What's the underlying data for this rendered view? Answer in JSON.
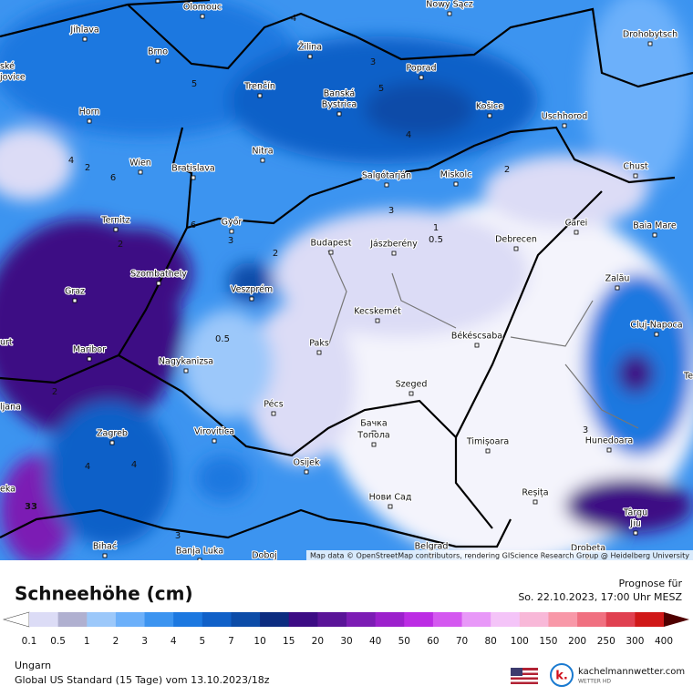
{
  "map": {
    "cities": [
      "Olomouc",
      "Nowy Sącz",
      "Jihlava",
      "Brno",
      "Žilina",
      "Poprad",
      "Drohobytsch",
      "ské",
      "jovice",
      "Trenčín",
      "Banská",
      "Bystrica",
      "Košice",
      "Uschhorod",
      "Horn",
      "Nitra",
      "Wien",
      "Bratislava",
      "Salgótarján",
      "Miskolc",
      "Chust",
      "Ternitz",
      "Győr",
      "Carei",
      "Baia Mare",
      "Budapest",
      "Jászberény",
      "Debrecen",
      "Szombathely",
      "Graz",
      "Veszprém",
      "Zalău",
      "Kecskemét",
      "Cluj-Napoca",
      "urt",
      "Paks",
      "Békéscsaba",
      "Maribor",
      "Nagykanizsa",
      "Szeged",
      "Te",
      "ljana",
      "Pécs",
      "Zagreb",
      "Virovitica",
      "Бачка",
      "Топола",
      "Timișoara",
      "Hunedoara",
      "Osijek",
      "eka",
      "Нови Сад",
      "Reșița",
      "Târgu",
      "Jiu",
      "Bihać",
      "Banja Luka",
      "Doboj",
      "Belgrad",
      "Drobeta"
    ],
    "contour_labels": [
      "2",
      "4",
      "3",
      "5",
      "5",
      "4",
      "4",
      "3",
      "2",
      "4",
      "2",
      "6",
      "3",
      "1",
      "0.5",
      "3",
      "2",
      "0.5",
      "6",
      "4",
      "2",
      "33",
      "3"
    ],
    "attribution": "Map data © OpenStreetMap contributors, rendering GIScience Research Group @ Heidelberg University"
  },
  "legend": {
    "title": "Schneehöhe (cm)",
    "ticks": [
      0.1,
      0.5,
      1,
      2,
      3,
      4,
      5,
      7,
      10,
      15,
      20,
      30,
      40,
      50,
      60,
      70,
      80,
      100,
      150,
      200,
      250,
      300,
      400
    ],
    "colors": [
      "#dcdcf6",
      "#b0b0d0",
      "#9cc8fa",
      "#6cb0fa",
      "#3c94f0",
      "#1c78e0",
      "#1060c8",
      "#0c4ca8",
      "#0c2c80",
      "#3c0c84",
      "#5a1498",
      "#7c1cb4",
      "#9c20cc",
      "#bc2ce4",
      "#d458f0",
      "#e898f8",
      "#f4c4f8",
      "#f8b8d8",
      "#f898a8",
      "#f07080",
      "#e04050",
      "#d01818",
      "#b00404",
      "#900000",
      "#700000",
      "#500000"
    ]
  },
  "forecast": {
    "label": "Prognose für",
    "datetime": "So. 22.10.2023, 17:00 Uhr MESZ"
  },
  "footer": {
    "region": "Ungarn",
    "model": "Global US Standard (15 Tage) vom  13.10.2023/18z"
  },
  "brand": {
    "logo": "k.",
    "site": "kachelmannwetter.com",
    "tagline": "WETTER HD"
  }
}
